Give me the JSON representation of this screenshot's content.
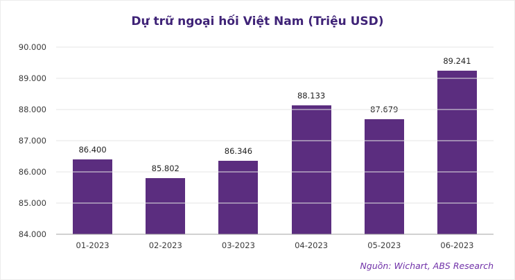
{
  "title": "Dự trữ ngoại hối Việt Nam (Triệu USD)",
  "source_note": "Nguồn: Wichart, ABS Research",
  "colors": {
    "bar": "#5b2d7f",
    "title_color": "#3f2377",
    "source_color": "#7031a8",
    "grid": "#e6e6e6",
    "baseline": "#a3a3a3",
    "axis_text": "#3a3a3a",
    "label_text": "#1f1f1f"
  },
  "chart_data": {
    "type": "bar",
    "title": "Dự trữ ngoại hối Việt Nam (Triệu USD)",
    "categories": [
      "01-2023",
      "02-2023",
      "03-2023",
      "04-2023",
      "05-2023",
      "06-2023"
    ],
    "values": [
      86400,
      85802,
      86346,
      88133,
      87679,
      89241
    ],
    "value_labels": [
      "86.400",
      "85.802",
      "86.346",
      "88.133",
      "87.679",
      "89.241"
    ],
    "xlabel": "",
    "ylabel": "",
    "ylim": [
      84000,
      90000
    ],
    "ytick_step": 1000,
    "ytick_labels": [
      "84.000",
      "85.000",
      "86.000",
      "87.000",
      "88.000",
      "89.000",
      "90.000"
    ],
    "grid": true,
    "legend": "none"
  }
}
